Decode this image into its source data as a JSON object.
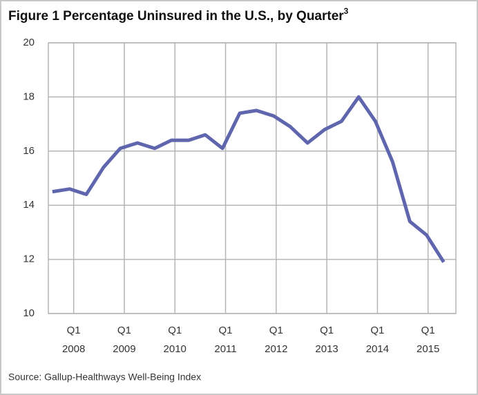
{
  "chart_data": {
    "type": "line",
    "title": "Figure 1  Percentage Uninsured in the U.S., by Quarter",
    "title_superscript": "3",
    "source": "Source: Gallup-Healthways Well-Being Index",
    "x": [
      2007.58,
      2007.92,
      2008.25,
      2008.59,
      2008.92,
      2009.26,
      2009.6,
      2009.93,
      2010.27,
      2010.6,
      2010.94,
      2011.28,
      2011.61,
      2011.95,
      2012.28,
      2012.62,
      2012.96,
      2013.29,
      2013.63,
      2013.96,
      2014.3,
      2014.64,
      2014.97,
      2015.31
    ],
    "values": [
      14.5,
      14.6,
      14.4,
      15.4,
      16.1,
      16.3,
      16.1,
      16.4,
      16.4,
      16.6,
      16.1,
      17.4,
      17.5,
      17.3,
      16.9,
      16.3,
      16.8,
      17.1,
      18.0,
      17.1,
      15.6,
      13.4,
      12.9,
      11.9
    ],
    "color": "#5f66ae",
    "xlim": [
      2007.5,
      2015.55
    ],
    "xticks": [
      {
        "value": 2008,
        "label": "Q1 2008"
      },
      {
        "value": 2009,
        "label": "Q1 2009"
      },
      {
        "value": 2010,
        "label": "Q1 2010"
      },
      {
        "value": 2011,
        "label": "Q1 2011"
      },
      {
        "value": 2012,
        "label": "Q1 2012"
      },
      {
        "value": 2013,
        "label": "Q1 2013"
      },
      {
        "value": 2014,
        "label": "Q1 2014"
      },
      {
        "value": 2015,
        "label": "Q1 2015"
      }
    ],
    "ylim": [
      10,
      20
    ],
    "yticks": [
      10,
      12,
      14,
      16,
      18,
      20
    ],
    "grid": true
  }
}
